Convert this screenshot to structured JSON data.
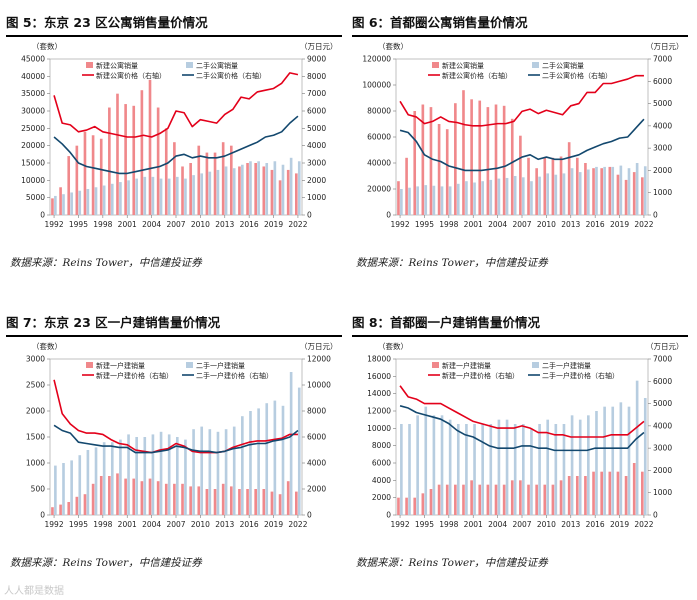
{
  "colors": {
    "new_bar": "#f0888b",
    "used_bar": "#b7cde0",
    "new_line": "#e3001a",
    "used_line": "#13486e",
    "plot_bg": "#ffffff",
    "grid": "#dddddd"
  },
  "source_text": "数据来源：Reins Tower，中信建投证券",
  "watermark_text": "人人都是数据",
  "chart_data": [
    {
      "id": "c1",
      "type": "bar",
      "title": "图 5：东京 23 区公寓销售量价情况",
      "left_unit": "（套数）",
      "right_unit": "（万日元）",
      "legend": [
        "新建公寓销量",
        "二手公寓销量",
        "新建公寓价格（右轴）",
        "二手公寓价格（右轴）"
      ],
      "ylim_left": [
        0,
        45000
      ],
      "yticks_left": [
        0,
        5000,
        10000,
        15000,
        20000,
        25000,
        30000,
        35000,
        40000,
        45000
      ],
      "ylim_right": [
        0,
        9000
      ],
      "yticks_right": [
        0,
        1000,
        2000,
        3000,
        4000,
        5000,
        6000,
        7000,
        8000,
        9000
      ],
      "xtick_labels": [
        "1992",
        "1995",
        "1998",
        "2001",
        "2004",
        "2007",
        "2010",
        "2013",
        "2016",
        "2019",
        "2022"
      ],
      "x": [
        1992,
        1993,
        1994,
        1995,
        1996,
        1997,
        1998,
        1999,
        2000,
        2001,
        2002,
        2003,
        2004,
        2005,
        2006,
        2007,
        2008,
        2009,
        2010,
        2011,
        2012,
        2013,
        2014,
        2015,
        2016,
        2017,
        2018,
        2019,
        2020,
        2021,
        2022
      ],
      "series": [
        {
          "name": "新建公寓销量",
          "kind": "bar",
          "axis": "left",
          "values": [
            4800,
            8000,
            17000,
            20000,
            24000,
            23000,
            22000,
            31000,
            35000,
            32000,
            31500,
            36000,
            39000,
            31000,
            25000,
            21000,
            14000,
            15000,
            20000,
            18000,
            18000,
            21000,
            20000,
            14000,
            15000,
            15000,
            14000,
            13000,
            10000,
            13000,
            12000
          ]
        },
        {
          "name": "二手公寓销量",
          "kind": "bar",
          "axis": "left",
          "values": [
            5500,
            6000,
            6500,
            7000,
            7500,
            8000,
            8500,
            9000,
            9500,
            10000,
            10500,
            11000,
            11000,
            10500,
            10500,
            11000,
            10500,
            11500,
            12000,
            12500,
            13000,
            14000,
            13500,
            14500,
            15500,
            15500,
            15000,
            15500,
            14500,
            16500,
            15500
          ]
        },
        {
          "name": "新建公寓价格（右轴）",
          "kind": "line",
          "axis": "right",
          "values": [
            6900,
            5300,
            5200,
            4800,
            4900,
            5100,
            4800,
            4700,
            4600,
            4500,
            4500,
            4600,
            4500,
            4700,
            5000,
            6000,
            5900,
            5100,
            5500,
            5400,
            5300,
            5800,
            6100,
            6800,
            6700,
            7100,
            7200,
            7300,
            7600,
            8200,
            8100
          ]
        },
        {
          "name": "二手公寓价格（右轴）",
          "kind": "line",
          "axis": "right",
          "values": [
            4500,
            4100,
            3600,
            3000,
            2800,
            2700,
            2600,
            2500,
            2400,
            2400,
            2500,
            2600,
            2700,
            2800,
            3000,
            3400,
            3500,
            3300,
            3400,
            3300,
            3300,
            3400,
            3600,
            3800,
            4000,
            4200,
            4500,
            4600,
            4800,
            5300,
            5700
          ]
        }
      ]
    },
    {
      "id": "c2",
      "type": "bar",
      "title": "图 6：首都圈公寓销售量价情况",
      "left_unit": "（套数）",
      "right_unit": "（万日元）",
      "legend": [
        "新建公寓销量",
        "二手公寓销量",
        "新建公寓价格（右轴）",
        "二手公寓价格（右轴）"
      ],
      "ylim_left": [
        0,
        120000
      ],
      "yticks_left": [
        0,
        20000,
        40000,
        60000,
        80000,
        100000,
        120000
      ],
      "ylim_right": [
        0,
        7000
      ],
      "yticks_right": [
        0,
        1000,
        2000,
        3000,
        4000,
        5000,
        6000,
        7000
      ],
      "xtick_labels": [
        "1992",
        "1995",
        "1998",
        "2001",
        "2004",
        "2007",
        "2010",
        "2013",
        "2016",
        "2019",
        "2022"
      ],
      "x": [
        1992,
        1993,
        1994,
        1995,
        1996,
        1997,
        1998,
        1999,
        2000,
        2001,
        2002,
        2003,
        2004,
        2005,
        2006,
        2007,
        2008,
        2009,
        2010,
        2011,
        2012,
        2013,
        2014,
        2015,
        2016,
        2017,
        2018,
        2019,
        2020,
        2021,
        2022
      ],
      "series": [
        {
          "name": "新建公寓销量",
          "kind": "bar",
          "axis": "left",
          "values": [
            26000,
            44000,
            80000,
            85000,
            83000,
            70000,
            66000,
            86000,
            96000,
            89000,
            88000,
            83000,
            85000,
            84000,
            74000,
            61000,
            44000,
            36000,
            44000,
            44000,
            45000,
            56000,
            44000,
            40000,
            36000,
            36000,
            37000,
            31000,
            27000,
            33000,
            29000
          ]
        },
        {
          "name": "二手公寓销量",
          "kind": "bar",
          "axis": "left",
          "values": [
            20000,
            21000,
            22000,
            23000,
            22500,
            22000,
            22000,
            24000,
            26000,
            25000,
            26000,
            27000,
            28000,
            28500,
            30000,
            29000,
            26000,
            29500,
            32000,
            31000,
            32000,
            36000,
            33000,
            35000,
            37000,
            37000,
            37000,
            38000,
            36000,
            40000,
            37500
          ]
        },
        {
          "name": "新建公寓价格（右轴）",
          "kind": "line",
          "axis": "right",
          "values": [
            5100,
            4500,
            4400,
            4100,
            4200,
            4400,
            4200,
            4150,
            4050,
            4000,
            4000,
            4050,
            4100,
            4100,
            4200,
            4650,
            4750,
            4550,
            4700,
            4600,
            4500,
            4900,
            5000,
            5500,
            5500,
            5900,
            5900,
            6000,
            6100,
            6250,
            6250
          ]
        },
        {
          "name": "二手公寓价格（右轴）",
          "kind": "line",
          "axis": "right",
          "values": [
            3800,
            3700,
            3300,
            2700,
            2500,
            2400,
            2200,
            2100,
            2000,
            2000,
            2000,
            2050,
            2100,
            2200,
            2400,
            2600,
            2700,
            2500,
            2600,
            2500,
            2500,
            2600,
            2700,
            2900,
            3050,
            3200,
            3300,
            3450,
            3500,
            3900,
            4300
          ]
        }
      ]
    },
    {
      "id": "c3",
      "type": "bar",
      "title": "图 7：东京 23 区一户建销售量价情况",
      "left_unit": "（套数）",
      "right_unit": "（万日元）",
      "legend": [
        "新建一户建销量",
        "二手一户建销量",
        "新建一户建价格（右轴）",
        "二手一户建价格（右轴）"
      ],
      "ylim_left": [
        0,
        3000
      ],
      "yticks_left": [
        0,
        500,
        1000,
        1500,
        2000,
        2500,
        3000
      ],
      "ylim_right": [
        0,
        12000
      ],
      "yticks_right": [
        0,
        2000,
        4000,
        6000,
        8000,
        10000,
        12000
      ],
      "xtick_labels": [
        "1992",
        "1995",
        "1998",
        "2001",
        "2004",
        "2007",
        "2010",
        "2013",
        "2016",
        "2019",
        "2022"
      ],
      "x": [
        1992,
        1993,
        1994,
        1995,
        1996,
        1997,
        1998,
        1999,
        2000,
        2001,
        2002,
        2003,
        2004,
        2005,
        2006,
        2007,
        2008,
        2009,
        2010,
        2011,
        2012,
        2013,
        2014,
        2015,
        2016,
        2017,
        2018,
        2019,
        2020,
        2021,
        2022
      ],
      "series": [
        {
          "name": "新建一户建销量",
          "kind": "bar",
          "axis": "left",
          "values": [
            150,
            200,
            250,
            350,
            400,
            600,
            750,
            750,
            800,
            700,
            700,
            650,
            700,
            650,
            600,
            600,
            600,
            550,
            550,
            500,
            500,
            600,
            550,
            500,
            500,
            500,
            500,
            450,
            400,
            650,
            450
          ]
        },
        {
          "name": "二手一户建销量",
          "kind": "bar",
          "axis": "left",
          "values": [
            950,
            1000,
            1050,
            1150,
            1250,
            1300,
            1400,
            1400,
            1450,
            1550,
            1500,
            1500,
            1550,
            1600,
            1550,
            1500,
            1450,
            1650,
            1700,
            1650,
            1600,
            1650,
            1700,
            1900,
            2000,
            2050,
            2150,
            2200,
            2100,
            2750,
            2450
          ]
        },
        {
          "name": "新建一户建价格（右轴）",
          "kind": "line",
          "axis": "right",
          "values": [
            10400,
            7800,
            7000,
            6500,
            6300,
            6300,
            6200,
            5800,
            5500,
            5400,
            5000,
            4900,
            4800,
            5000,
            5100,
            5500,
            5300,
            4900,
            4800,
            4800,
            4800,
            4900,
            5200,
            5400,
            5600,
            5700,
            5700,
            5800,
            5900,
            6200,
            6200
          ]
        },
        {
          "name": "二手一户建价格（右轴）",
          "kind": "line",
          "axis": "right",
          "values": [
            6900,
            6500,
            6300,
            5600,
            5500,
            5400,
            5300,
            5300,
            5200,
            5200,
            4800,
            4800,
            4800,
            4900,
            5000,
            5300,
            5200,
            5000,
            4900,
            4900,
            4800,
            4900,
            5100,
            5200,
            5400,
            5500,
            5500,
            5700,
            5800,
            6000,
            6500
          ]
        }
      ]
    },
    {
      "id": "c4",
      "type": "bar",
      "title": "图 8：首都圈一户建销售量价情况",
      "left_unit": "（套数）",
      "right_unit": "（万日元）",
      "legend": [
        "新建一户建销量",
        "二手一户建销量",
        "新建一户建价格（右轴）",
        "二手一户建价格（右轴）"
      ],
      "ylim_left": [
        0,
        18000
      ],
      "yticks_left": [
        0,
        2000,
        4000,
        6000,
        8000,
        10000,
        12000,
        14000,
        16000,
        18000
      ],
      "ylim_right": [
        0,
        7000
      ],
      "yticks_right": [
        0,
        1000,
        2000,
        3000,
        4000,
        5000,
        6000,
        7000
      ],
      "xtick_labels": [
        "1992",
        "1995",
        "1998",
        "2001",
        "2004",
        "2007",
        "2010",
        "2013",
        "2016",
        "2019",
        "2022"
      ],
      "x": [
        1992,
        1993,
        1994,
        1995,
        1996,
        1997,
        1998,
        1999,
        2000,
        2001,
        2002,
        2003,
        2004,
        2005,
        2006,
        2007,
        2008,
        2009,
        2010,
        2011,
        2012,
        2013,
        2014,
        2015,
        2016,
        2017,
        2018,
        2019,
        2020,
        2021,
        2022
      ],
      "series": [
        {
          "name": "新建一户建销量",
          "kind": "bar",
          "axis": "left",
          "values": [
            2000,
            2000,
            2000,
            2500,
            3000,
            3500,
            3500,
            3500,
            3500,
            4000,
            3500,
            3500,
            3500,
            3500,
            4000,
            4000,
            3500,
            3500,
            3500,
            3500,
            4000,
            4500,
            4500,
            4500,
            5000,
            5000,
            5000,
            5000,
            4500,
            6000,
            5000
          ]
        },
        {
          "name": "二手一户建销量",
          "kind": "bar",
          "axis": "left",
          "values": [
            10500,
            10500,
            11500,
            12500,
            11500,
            11500,
            11000,
            10500,
            10500,
            10500,
            10500,
            10500,
            11000,
            11000,
            10500,
            10500,
            10000,
            10500,
            11000,
            10500,
            10500,
            11500,
            11000,
            11500,
            12000,
            12500,
            12500,
            13000,
            12500,
            15500,
            13500
          ]
        },
        {
          "name": "新建一户建价格（右轴）",
          "kind": "line",
          "axis": "right",
          "values": [
            5800,
            5300,
            5200,
            5000,
            5000,
            5000,
            4800,
            4600,
            4400,
            4200,
            4100,
            4000,
            3900,
            3900,
            3900,
            4000,
            3900,
            3700,
            3700,
            3600,
            3600,
            3500,
            3500,
            3500,
            3500,
            3500,
            3600,
            3600,
            3600,
            3900,
            4200
          ]
        },
        {
          "name": "二手一户建价格（右轴）",
          "kind": "line",
          "axis": "right",
          "values": [
            4900,
            4800,
            4600,
            4500,
            4400,
            4300,
            4100,
            3800,
            3600,
            3500,
            3300,
            3100,
            3000,
            3000,
            3000,
            3100,
            3100,
            3000,
            3000,
            2900,
            2900,
            2900,
            2900,
            2900,
            3000,
            3000,
            3000,
            3000,
            3000,
            3400,
            3700
          ]
        }
      ]
    }
  ]
}
